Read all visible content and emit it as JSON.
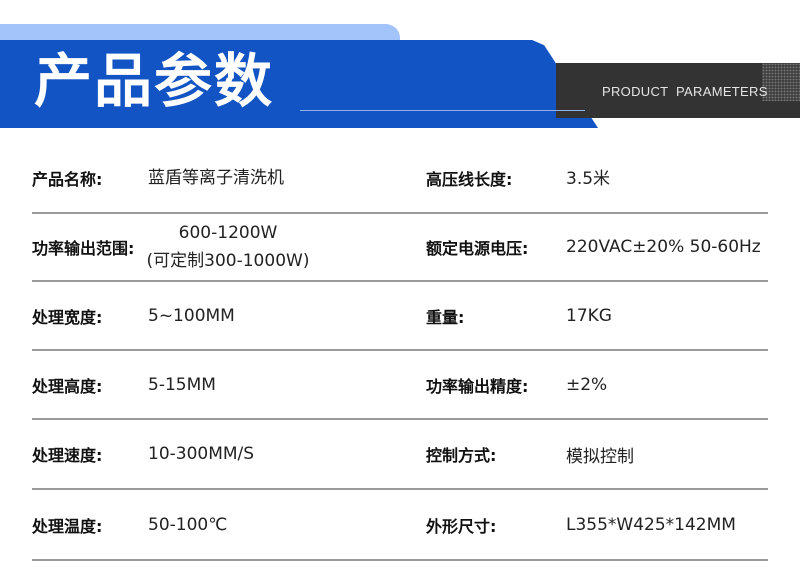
{
  "header": {
    "title": "产品参数",
    "subtitle": "PRODUCT  PARAMETERS"
  },
  "colors": {
    "accent_blue": "#1254c4",
    "light_blue": "#a3c4fb",
    "dark": "#333333"
  },
  "rows": [
    {
      "l1": "产品名称:",
      "v1": "蓝盾等离子清洗机",
      "l2": "高压线长度:",
      "v2": "3.5米"
    },
    {
      "l1": "功率输出范围:",
      "v1": "600-1200W",
      "v1b": "(可定制300-1000W)",
      "l2": "额定电源电压:",
      "v2": "220VAC±20% 50-60Hz"
    },
    {
      "l1": "处理宽度:",
      "v1": "5~100MM",
      "l2": "重量:",
      "v2": "17KG"
    },
    {
      "l1": "处理高度:",
      "v1": "5-15MM",
      "l2": "功率输出精度:",
      "v2": "±2%"
    },
    {
      "l1": "处理速度:",
      "v1": "10-300MM/S",
      "l2": "控制方式:",
      "v2": "模拟控制"
    },
    {
      "l1": "处理温度:",
      "v1": "50-100℃",
      "l2": "外形尺寸:",
      "v2": "L355*W425*142MM"
    }
  ]
}
